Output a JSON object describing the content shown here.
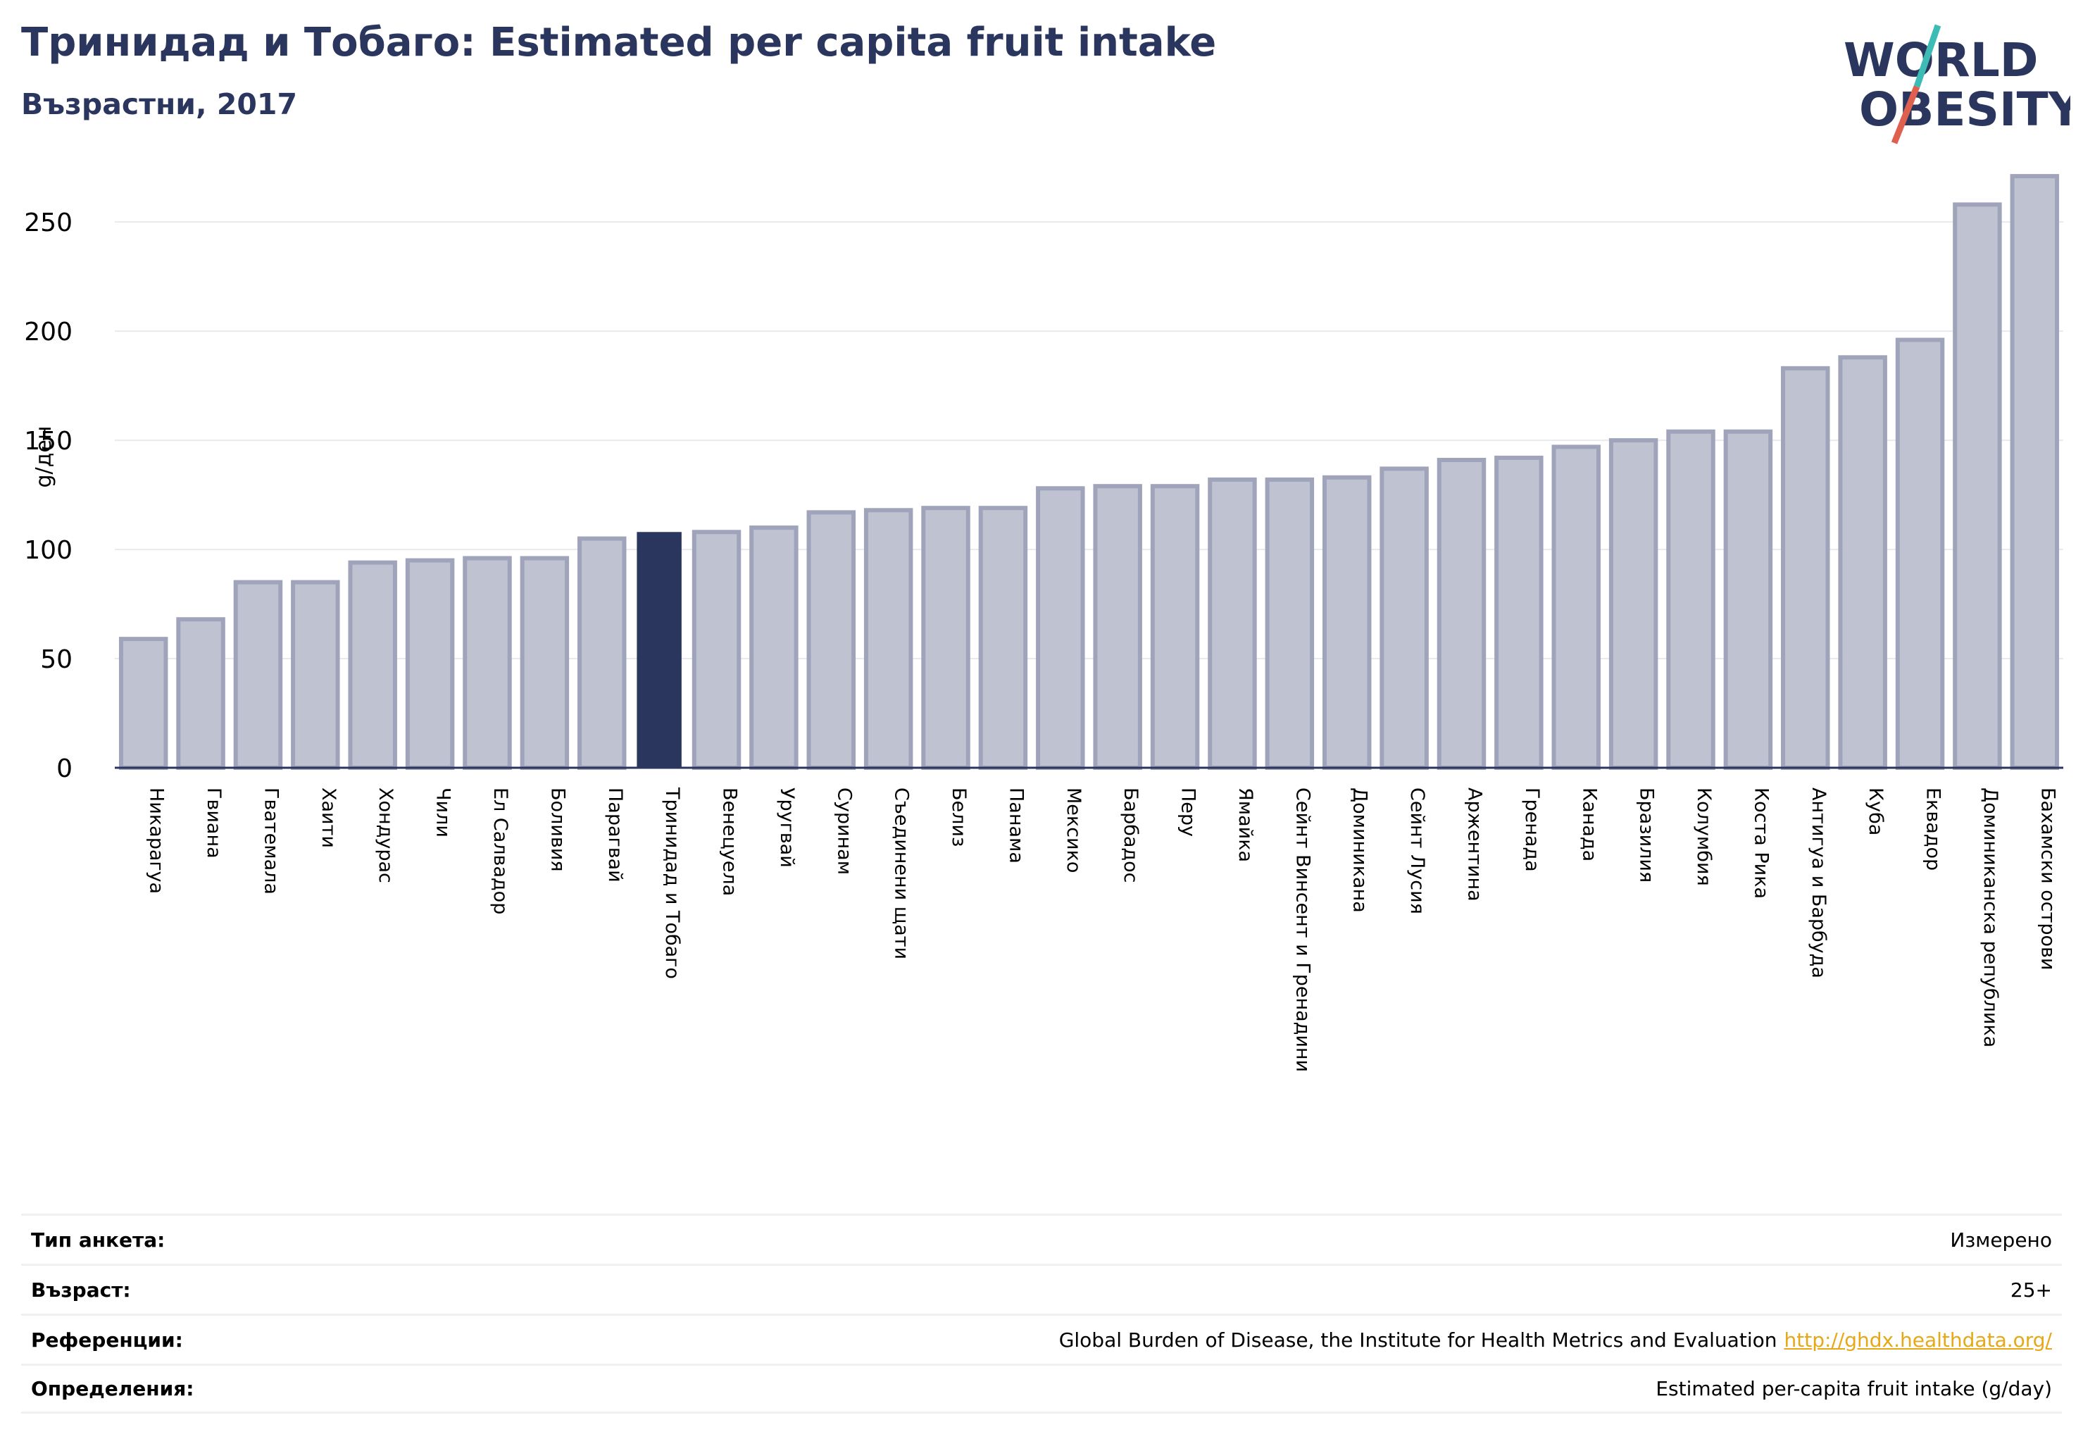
{
  "header": {
    "title": "Тринидад и Тобаго: Estimated per capita fruit intake",
    "subtitle": "Възрастни, 2017"
  },
  "logo": {
    "line1": "WORLD",
    "line2": "OBESITY",
    "text_color": "#2b365f",
    "accent_teal": "#3cbcb4",
    "accent_red": "#e0604f"
  },
  "colors": {
    "bar": "#bfc2d0",
    "bar_edge": "#9fa4bb",
    "highlight": "#2b365f",
    "grid": "#e8eaee",
    "axis": "#2b365f"
  },
  "chart_data": {
    "type": "bar",
    "title": "Тринидад и Тобаго: Estimated per capita fruit intake",
    "subtitle": "Възрастни, 2017",
    "xlabel": "",
    "ylabel": "g/ден",
    "ylim": [
      0,
      272
    ],
    "yticks": [
      0,
      50,
      100,
      150,
      200,
      250
    ],
    "grid": true,
    "highlight": "Тринидад и Тобаго",
    "categories": [
      "Никарагуа",
      "Гвиана",
      "Гватемала",
      "Хаити",
      "Хондурас",
      "Чили",
      "Ел Салвадор",
      "Боливия",
      "Парагвай",
      "Тринидад и Тобаго",
      "Венецуела",
      "Уругвай",
      "Суринам",
      "Съединени щати",
      "Белиз",
      "Панама",
      "Мексико",
      "Барбадос",
      "Перу",
      "Ямайка",
      "Сейнт Винсент и Гренадини",
      "Доминикана",
      "Сейнт Лусия",
      "Аржентина",
      "Гренада",
      "Канада",
      "Бразилия",
      "Колумбия",
      "Коста Рика",
      "Антигуа и Барбуда",
      "Куба",
      "Еквадор",
      "Доминиканска република",
      "Бахамски острови"
    ],
    "values": [
      59,
      68,
      85,
      85,
      94,
      95,
      96,
      96,
      105,
      108,
      108,
      110,
      117,
      118,
      119,
      119,
      128,
      129,
      129,
      132,
      132,
      133,
      137,
      141,
      142,
      147,
      150,
      154,
      154,
      183,
      188,
      196,
      258,
      271
    ]
  },
  "info_table": [
    {
      "label": "Тип анкета:",
      "value": "Измерено"
    },
    {
      "label": "Възраст:",
      "value": "25+"
    },
    {
      "label": "Референции:",
      "value": "Global Burden of Disease, the Institute for Health Metrics and Evaluation",
      "link": "http://ghdx.healthdata.org/"
    },
    {
      "label": "Определения:",
      "value": "Estimated per-capita fruit intake (g/day)"
    }
  ]
}
